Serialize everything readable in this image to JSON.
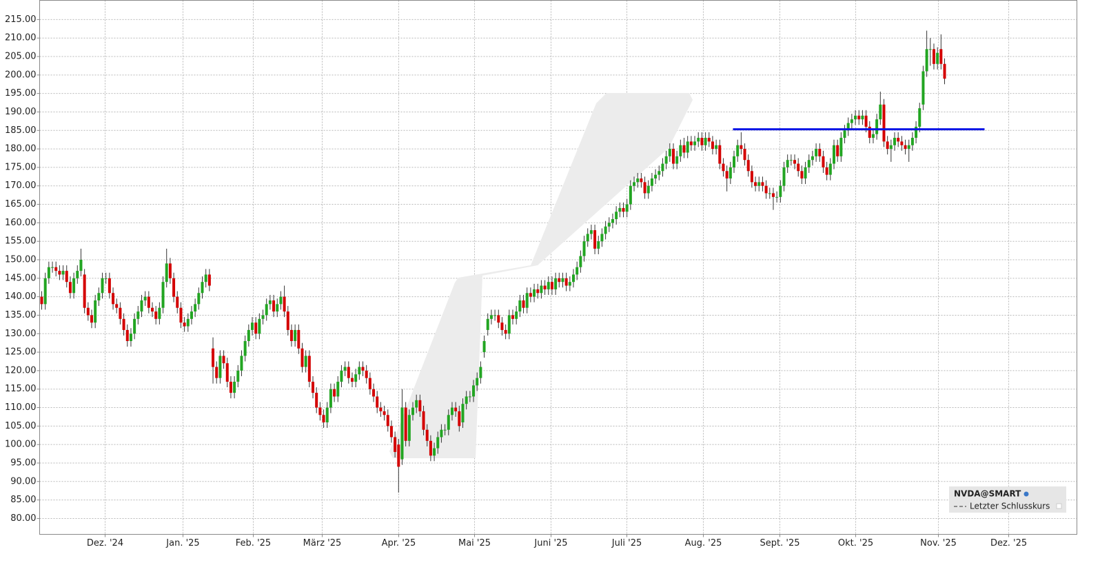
{
  "chart_data": {
    "type": "candlestick",
    "symbol": "NVDA@SMART",
    "legend_entry": "Letzter Schlusskurs",
    "legend_position": "lower right",
    "grid": true,
    "up_color": "#22a522",
    "down_color": "#d40000",
    "wick_color": "#333333",
    "ylim": [
      75.7,
      220.2
    ],
    "yticks": [
      {
        "value": 80,
        "label": "80.00"
      },
      {
        "value": 85,
        "label": "85.00"
      },
      {
        "value": 90,
        "label": "90.00"
      },
      {
        "value": 95,
        "label": "95.00"
      },
      {
        "value": 100,
        "label": "100.00"
      },
      {
        "value": 105,
        "label": "105.00"
      },
      {
        "value": 110,
        "label": "110.00"
      },
      {
        "value": 115,
        "label": "115.00"
      },
      {
        "value": 120,
        "label": "120.00"
      },
      {
        "value": 125,
        "label": "125.00"
      },
      {
        "value": 130,
        "label": "130.00"
      },
      {
        "value": 135,
        "label": "135.00"
      },
      {
        "value": 140,
        "label": "140.00"
      },
      {
        "value": 145,
        "label": "145.00"
      },
      {
        "value": 150,
        "label": "150.00"
      },
      {
        "value": 155,
        "label": "155.00"
      },
      {
        "value": 160,
        "label": "160.00"
      },
      {
        "value": 165,
        "label": "165.00"
      },
      {
        "value": 170,
        "label": "170.00"
      },
      {
        "value": 175,
        "label": "175.00"
      },
      {
        "value": 180,
        "label": "180.00"
      },
      {
        "value": 185,
        "label": "185.00"
      },
      {
        "value": 190,
        "label": "190.00"
      },
      {
        "value": 195,
        "label": "195.00"
      },
      {
        "value": 200,
        "label": "200.00"
      },
      {
        "value": 205,
        "label": "205.00"
      },
      {
        "value": 210,
        "label": "210.00"
      },
      {
        "value": 215,
        "label": "215.00"
      }
    ],
    "xlim": [
      -0.58,
      290.08
    ],
    "xticks": [
      {
        "value": 17.77,
        "label": "Dez. '24"
      },
      {
        "value": 39.59,
        "label": "Jan. '25"
      },
      {
        "value": 59.29,
        "label": "Feb. '25"
      },
      {
        "value": 78.6,
        "label": "März '25"
      },
      {
        "value": 100.04,
        "label": "Apr. '25"
      },
      {
        "value": 121.29,
        "label": "Mai '25"
      },
      {
        "value": 142.72,
        "label": "Juni '25"
      },
      {
        "value": 163.97,
        "label": "Juli '25"
      },
      {
        "value": 185.4,
        "label": "Aug. '25"
      },
      {
        "value": 206.84,
        "label": "Sept. '25"
      },
      {
        "value": 228.09,
        "label": "Okt. '25"
      },
      {
        "value": 251.27,
        "label": "Nov. '25"
      },
      {
        "value": 270.97,
        "label": "Dez. '25"
      }
    ],
    "hline": {
      "value": 185.3,
      "x": [
        193.7,
        264.2
      ],
      "color": "#0a14e6"
    },
    "open": [
      140,
      138,
      145,
      148,
      148,
      147,
      146,
      147,
      144,
      141,
      145,
      147,
      146,
      137,
      135,
      133,
      139,
      141,
      145,
      145,
      141,
      138,
      137,
      134,
      131,
      128,
      130,
      134,
      136,
      139,
      140,
      137,
      136,
      134,
      137,
      144,
      149,
      145,
      140,
      137,
      133,
      132,
      134,
      136,
      138,
      141,
      144,
      146,
      126,
      121,
      118,
      124,
      122,
      117,
      114,
      117,
      120,
      124,
      128,
      131,
      133,
      130,
      134,
      135,
      138,
      139,
      136,
      138,
      140,
      136,
      131,
      128,
      131,
      126,
      121,
      124,
      117,
      114,
      110,
      108,
      106,
      110,
      115,
      113,
      117,
      120,
      121,
      118,
      117,
      119,
      121,
      120,
      118,
      115,
      113,
      110,
      109,
      108,
      105,
      102,
      100,
      96,
      110,
      101,
      108,
      110,
      112,
      109,
      104,
      101,
      97,
      99,
      102,
      104,
      104,
      108,
      110,
      109,
      106,
      111,
      113,
      113,
      116,
      118,
      125,
      131,
      134,
      135,
      135,
      133,
      131,
      130,
      135,
      134,
      136,
      139,
      137,
      141,
      140,
      142,
      141,
      143,
      142,
      144,
      142,
      145,
      144,
      145,
      143,
      144,
      146,
      148,
      151,
      155,
      157,
      158,
      153,
      155,
      157,
      159,
      160,
      161,
      163,
      164,
      163,
      165,
      170,
      171,
      172,
      171,
      168,
      170,
      172,
      173,
      174,
      176,
      178,
      180,
      176,
      178,
      181,
      179,
      182,
      181,
      182,
      183,
      181,
      183,
      182,
      180,
      181,
      176,
      174,
      172,
      175,
      178,
      181,
      180,
      177,
      174,
      171,
      170,
      171,
      170,
      168,
      168,
      167,
      167,
      170,
      175,
      177,
      177,
      176,
      174,
      172,
      175,
      177,
      178,
      180,
      178,
      175,
      173,
      176,
      181,
      178,
      183,
      185,
      187,
      188,
      189,
      188,
      189,
      186,
      183,
      184,
      188,
      192,
      182,
      180,
      181,
      183,
      182,
      181,
      180,
      181,
      183,
      186,
      192,
      201,
      207,
      207,
      203,
      207,
      203
    ],
    "high": [
      141.5,
      146.5,
      149.5,
      149.5,
      149.5,
      148.5,
      148.5,
      148.5,
      145.5,
      146.5,
      148.5,
      153,
      147.5,
      138.5,
      136.5,
      140.5,
      142.5,
      146.5,
      146.5,
      146.5,
      142.5,
      139.5,
      138.5,
      135.5,
      132.5,
      131.5,
      135.5,
      137.5,
      140.5,
      141.5,
      141.5,
      138.5,
      137.5,
      138.5,
      145.5,
      153,
      150.5,
      146.5,
      141.5,
      138.5,
      134.5,
      135.5,
      137.5,
      139.5,
      142.5,
      145.5,
      147.5,
      147.5,
      129,
      122.5,
      125.5,
      125.5,
      123.5,
      118.5,
      118.5,
      121.5,
      125.5,
      129.5,
      132.5,
      134.5,
      134.5,
      135.5,
      136.5,
      139.5,
      140.5,
      140.5,
      139.5,
      141.5,
      143,
      137.5,
      132.5,
      132.5,
      132.5,
      127.5,
      125.5,
      125.5,
      118.5,
      115.5,
      111.5,
      109.5,
      111.5,
      116.5,
      116.5,
      118.5,
      121.5,
      122.5,
      122.5,
      119.5,
      120.5,
      122.5,
      122.5,
      121.5,
      119.5,
      116.5,
      114.5,
      111.5,
      110.5,
      109.5,
      106.5,
      103.5,
      101.5,
      115,
      111.5,
      109.5,
      111.5,
      113.5,
      113.5,
      110.5,
      105.5,
      102.5,
      100.5,
      103.5,
      105.5,
      105.5,
      109.5,
      111.5,
      111.5,
      110.5,
      112.5,
      114.5,
      114.5,
      117.5,
      119.5,
      122.5,
      129.5,
      135.5,
      136.5,
      136.5,
      136.5,
      134.5,
      132.5,
      136.5,
      136.5,
      137.5,
      140.5,
      140.5,
      142.5,
      142.5,
      143.5,
      143.5,
      144.5,
      144.5,
      145.5,
      145.5,
      146.5,
      146.5,
      146.5,
      146.5,
      145.5,
      147.5,
      149.5,
      152.5,
      156.5,
      158.5,
      159.5,
      159.5,
      156.5,
      158.5,
      160.5,
      161.5,
      162.5,
      164.5,
      165.5,
      165.5,
      166.5,
      171.5,
      172.5,
      173.5,
      173.5,
      172.5,
      171.5,
      173.5,
      174.5,
      175.5,
      177.5,
      179.5,
      181.5,
      181.5,
      179.5,
      182.5,
      183,
      183.5,
      183.5,
      183.5,
      184.5,
      184.5,
      184.5,
      184.5,
      183.5,
      182.5,
      182.5,
      177.5,
      175.5,
      176.5,
      179.5,
      182.5,
      184.5,
      181.5,
      178.5,
      175.5,
      172.5,
      172.5,
      172.5,
      171.5,
      169.5,
      169.5,
      168.5,
      171.5,
      176.5,
      178.5,
      178.5,
      178.5,
      177.5,
      175.5,
      176.5,
      178.5,
      179.5,
      181.5,
      181.5,
      179.5,
      176.5,
      177.5,
      182.5,
      182.5,
      184.5,
      186.5,
      188.5,
      189.5,
      190.5,
      190.5,
      190.5,
      190.5,
      187.5,
      185.5,
      189.5,
      195.5,
      193.5,
      183.5,
      182.5,
      184.5,
      184.5,
      183.5,
      182.5,
      182.5,
      184.5,
      187.5,
      192.5,
      202.5,
      212,
      210,
      208.5,
      207.5,
      211,
      204.5
    ],
    "low": [
      136.5,
      136.5,
      143.5,
      146.5,
      145.5,
      144.5,
      144.5,
      142.5,
      139.5,
      139.5,
      143.5,
      145.5,
      135.5,
      133.5,
      131.5,
      131.5,
      137.5,
      139.5,
      143.5,
      139.5,
      136.5,
      135.5,
      132.5,
      129.5,
      126.5,
      126.5,
      128.5,
      132.5,
      134.5,
      137.5,
      135.5,
      134.5,
      132.5,
      132.5,
      135.5,
      142.5,
      143.5,
      138.5,
      135.5,
      131.5,
      130.5,
      130.5,
      132.5,
      134.5,
      136.5,
      139.5,
      142.5,
      141.5,
      116.5,
      116.5,
      116.5,
      120.5,
      115.5,
      112.5,
      112.5,
      115.5,
      118.5,
      122.5,
      126.5,
      129.5,
      128.5,
      128.5,
      132.5,
      133.5,
      136.5,
      134.5,
      134.5,
      136.5,
      134.5,
      129.5,
      126.5,
      126.5,
      124.5,
      119.5,
      119.5,
      115.5,
      112.5,
      108.5,
      106.5,
      104.5,
      104.5,
      108.5,
      111.5,
      111.5,
      115.5,
      118.5,
      116.5,
      115.5,
      115.5,
      117.5,
      118.5,
      116.5,
      113.5,
      111.5,
      108.5,
      107.5,
      106.5,
      103.5,
      100.5,
      96.5,
      87,
      94.5,
      99.5,
      99.5,
      106.5,
      108.5,
      107.5,
      102.5,
      99.5,
      95.5,
      95.5,
      97.5,
      100.5,
      102.5,
      102.5,
      106.5,
      107.5,
      103.5,
      104.5,
      109.5,
      111.5,
      111.5,
      114.5,
      116.5,
      123.5,
      129.5,
      132.5,
      133.5,
      131.5,
      129.5,
      128.5,
      128.5,
      132.5,
      132.5,
      134.5,
      135.5,
      135.5,
      138.5,
      138.5,
      139.5,
      139.5,
      140.5,
      140.5,
      140.5,
      140.5,
      142.5,
      142.5,
      141.5,
      141.5,
      142.5,
      144.5,
      146.5,
      149.5,
      153.5,
      155.5,
      151.5,
      151.5,
      153.5,
      155.5,
      157.5,
      158.5,
      159.5,
      161.5,
      161.5,
      161.5,
      163.5,
      168.5,
      169.5,
      169.5,
      166.5,
      166.5,
      168.5,
      170.5,
      171.5,
      172.5,
      174.5,
      176.5,
      174.5,
      174.5,
      176.5,
      177.5,
      177.5,
      179.5,
      179.5,
      180.5,
      179.5,
      179.5,
      180.5,
      178.5,
      178.5,
      174.5,
      172.5,
      168.5,
      170.5,
      173.5,
      176.5,
      178.5,
      175.5,
      172.5,
      169.5,
      168.5,
      168.5,
      168.5,
      166.5,
      166.5,
      163.5,
      165.5,
      165.5,
      168.5,
      173.5,
      175.5,
      174.5,
      172.5,
      170.5,
      170.5,
      173.5,
      175.5,
      176.5,
      176.5,
      173.5,
      171.5,
      171.5,
      174.5,
      176.5,
      176.5,
      181.5,
      183.5,
      185.5,
      186.5,
      186.5,
      186.5,
      184.5,
      181.5,
      181.5,
      182.5,
      186.5,
      180.5,
      178.5,
      176.5,
      179.5,
      180.5,
      179.5,
      178.5,
      176.5,
      179.5,
      181.5,
      184.5,
      190.5,
      199.5,
      202.5,
      201.5,
      201.5,
      201.5,
      197.5
    ],
    "close": [
      138,
      145,
      148,
      148,
      147,
      146,
      147,
      144,
      141,
      145,
      147,
      150,
      137,
      135,
      133,
      139,
      141,
      145,
      145,
      141,
      138,
      137,
      134,
      131,
      128,
      130,
      134,
      136,
      139,
      140,
      137,
      136,
      134,
      137,
      144,
      149,
      145,
      140,
      137,
      133,
      132,
      134,
      136,
      138,
      141,
      144,
      146,
      143,
      121,
      118,
      124,
      122,
      117,
      114,
      117,
      120,
      124,
      128,
      131,
      133,
      130,
      134,
      135,
      138,
      139,
      136,
      138,
      140,
      136,
      131,
      128,
      131,
      126,
      121,
      124,
      117,
      114,
      110,
      108,
      106,
      110,
      115,
      113,
      117,
      120,
      121,
      118,
      117,
      119,
      121,
      120,
      118,
      115,
      113,
      110,
      109,
      108,
      105,
      102,
      98,
      94,
      110,
      101,
      108,
      110,
      112,
      109,
      104,
      101,
      97,
      99,
      102,
      104,
      104,
      108,
      110,
      109,
      105,
      111,
      113,
      113,
      116,
      118,
      121,
      128,
      134,
      135,
      135,
      133,
      131,
      130,
      135,
      134,
      136,
      139,
      137,
      141,
      140,
      142,
      141,
      143,
      142,
      144,
      142,
      145,
      144,
      145,
      143,
      144,
      146,
      148,
      151,
      155,
      157,
      158,
      153,
      155,
      157,
      159,
      160,
      161,
      163,
      164,
      163,
      165,
      170,
      171,
      172,
      171,
      168,
      170,
      172,
      173,
      174,
      176,
      178,
      180,
      176,
      178,
      181,
      179,
      182,
      181,
      182,
      183,
      181,
      183,
      182,
      180,
      181,
      176,
      174,
      172,
      175,
      178,
      181,
      180,
      177,
      174,
      171,
      170,
      171,
      170,
      168,
      168,
      167,
      167,
      170,
      175,
      177,
      177,
      176,
      174,
      172,
      175,
      177,
      178,
      180,
      178,
      175,
      173,
      176,
      181,
      178,
      183,
      185,
      187,
      188,
      189,
      188,
      189,
      186,
      183,
      184,
      188,
      192,
      182,
      180,
      181,
      183,
      182,
      181,
      180,
      181,
      183,
      186,
      191,
      201,
      207,
      207,
      203,
      206,
      203,
      199
    ]
  }
}
